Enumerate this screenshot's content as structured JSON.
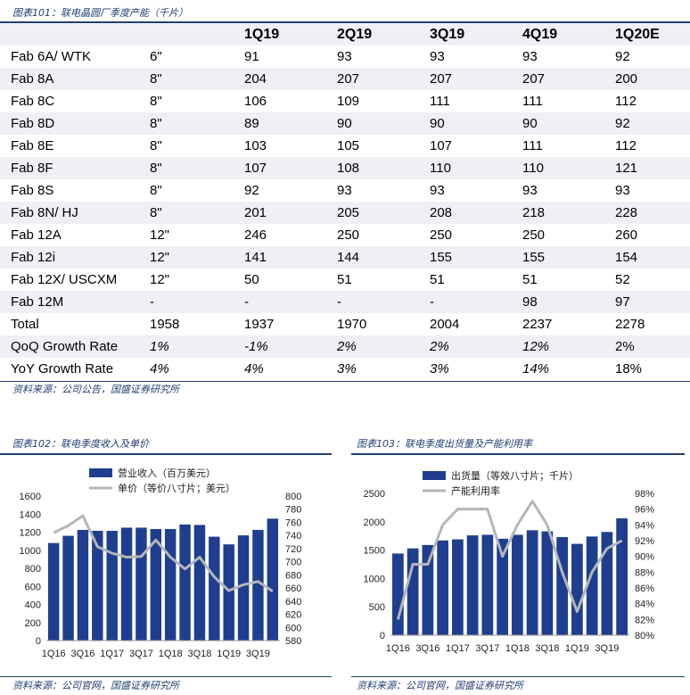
{
  "table": {
    "caption": "图表101：联电晶圆厂季度产能（千片）",
    "headers": [
      "",
      "",
      "1Q19",
      "2Q19",
      "3Q19",
      "4Q19",
      "1Q20E"
    ],
    "rows": [
      [
        "Fab 6A/ WTK",
        "6\"",
        "91",
        "93",
        "93",
        "93",
        "92"
      ],
      [
        "Fab 8A",
        "8\"",
        "204",
        "207",
        "207",
        "207",
        "200"
      ],
      [
        "Fab 8C",
        "8\"",
        "106",
        "109",
        "111",
        "111",
        "112"
      ],
      [
        "Fab 8D",
        "8\"",
        "89",
        "90",
        "90",
        "90",
        "92"
      ],
      [
        "Fab 8E",
        "8\"",
        "103",
        "105",
        "107",
        "111",
        "112"
      ],
      [
        "Fab 8F",
        "8\"",
        "107",
        "108",
        "110",
        "110",
        "121"
      ],
      [
        "Fab 8S",
        "8\"",
        "92",
        "93",
        "93",
        "93",
        "93"
      ],
      [
        "Fab 8N/ HJ",
        "8\"",
        "201",
        "205",
        "208",
        "218",
        "228"
      ],
      [
        "Fab 12A",
        "12\"",
        "246",
        "250",
        "250",
        "250",
        "260"
      ],
      [
        "Fab 12i",
        "12\"",
        "141",
        "144",
        "155",
        "155",
        "154"
      ],
      [
        "Fab 12X/ USCXM",
        "12\"",
        "50",
        "51",
        "51",
        "51",
        "52"
      ],
      [
        "Fab 12M",
        "-",
        "-",
        "-",
        "-",
        "98",
        "97"
      ],
      [
        "Total",
        "1958",
        "1937",
        "1970",
        "2004",
        "2237",
        "2278"
      ],
      [
        "QoQ Growth Rate",
        "1%",
        "-1%",
        "2%",
        "2%",
        "12%",
        "2%"
      ],
      [
        "YoY Growth Rate",
        "4%",
        "4%",
        "3%",
        "3%",
        "14%",
        "18%"
      ]
    ],
    "source": "资料来源：公司公告，国盛证券研究所"
  },
  "chart_data": [
    {
      "type": "bar",
      "caption": "图表102：联电季度收入及单价",
      "categories": [
        "1Q16",
        "2Q16",
        "3Q16",
        "4Q16",
        "1Q17",
        "2Q17",
        "3Q17",
        "4Q17",
        "1Q18",
        "2Q18",
        "3Q18",
        "4Q18",
        "1Q19",
        "2Q19",
        "3Q19",
        "4Q19"
      ],
      "x_tick_labels": [
        "1Q16",
        "3Q16",
        "1Q17",
        "3Q17",
        "1Q18",
        "3Q18",
        "1Q19",
        "3Q19"
      ],
      "series": [
        {
          "name": "营业收入（百万美元）",
          "kind": "bar",
          "axis": "left",
          "values": [
            1080,
            1160,
            1225,
            1215,
            1215,
            1250,
            1250,
            1235,
            1235,
            1285,
            1280,
            1150,
            1065,
            1165,
            1225,
            1350
          ]
        },
        {
          "name": "单价（等价八寸片；美元）",
          "kind": "line",
          "axis": "right",
          "values": [
            744,
            755,
            770,
            723,
            713,
            707,
            708,
            733,
            707,
            689,
            707,
            677,
            656,
            665,
            670,
            655
          ]
        }
      ],
      "ylim_left": [
        0,
        1600
      ],
      "ylim_right": [
        580,
        800
      ],
      "yticks_left": [
        "0",
        "200",
        "400",
        "600",
        "800",
        "1000",
        "1200",
        "1400",
        "1600"
      ],
      "yticks_right": [
        "580",
        "600",
        "620",
        "640",
        "660",
        "680",
        "700",
        "720",
        "740",
        "760",
        "780",
        "800"
      ],
      "colors": {
        "bar": "#1f3e8f",
        "line": "#b4b6b9"
      },
      "source": "资料来源：公司官网，国盛证券研究所"
    },
    {
      "type": "bar",
      "caption": "图表103：联电季度出货量及产能利用率",
      "categories": [
        "1Q16",
        "2Q16",
        "3Q16",
        "4Q16",
        "1Q17",
        "2Q17",
        "3Q17",
        "4Q17",
        "1Q18",
        "2Q18",
        "3Q18",
        "4Q18",
        "1Q19",
        "2Q19",
        "3Q19",
        "4Q19"
      ],
      "x_tick_labels": [
        "1Q16",
        "3Q16",
        "1Q17",
        "3Q17",
        "1Q18",
        "3Q18",
        "1Q19",
        "3Q19"
      ],
      "series": [
        {
          "name": "出货量（等效八寸片；千片）",
          "kind": "bar",
          "axis": "left",
          "values": [
            1440,
            1530,
            1590,
            1670,
            1690,
            1760,
            1770,
            1700,
            1770,
            1850,
            1830,
            1730,
            1610,
            1740,
            1820,
            2060
          ]
        },
        {
          "name": "产能利用率",
          "kind": "line",
          "axis": "right",
          "values": [
            82,
            89,
            89,
            94,
            96,
            96,
            96,
            90,
            94,
            97,
            94,
            88,
            83,
            88,
            91,
            92
          ]
        }
      ],
      "ylim_left": [
        0,
        2500
      ],
      "ylim_right": [
        80,
        98
      ],
      "yticks_left": [
        "0",
        "500",
        "1000",
        "1500",
        "2000",
        "2500"
      ],
      "yticks_right": [
        "80%",
        "82%",
        "84%",
        "86%",
        "88%",
        "90%",
        "92%",
        "94%",
        "96%",
        "98%"
      ],
      "colors": {
        "bar": "#1f3e8f",
        "line": "#b4b6b9"
      },
      "source": "资料来源：公司官网，国盛证券研究所"
    }
  ]
}
